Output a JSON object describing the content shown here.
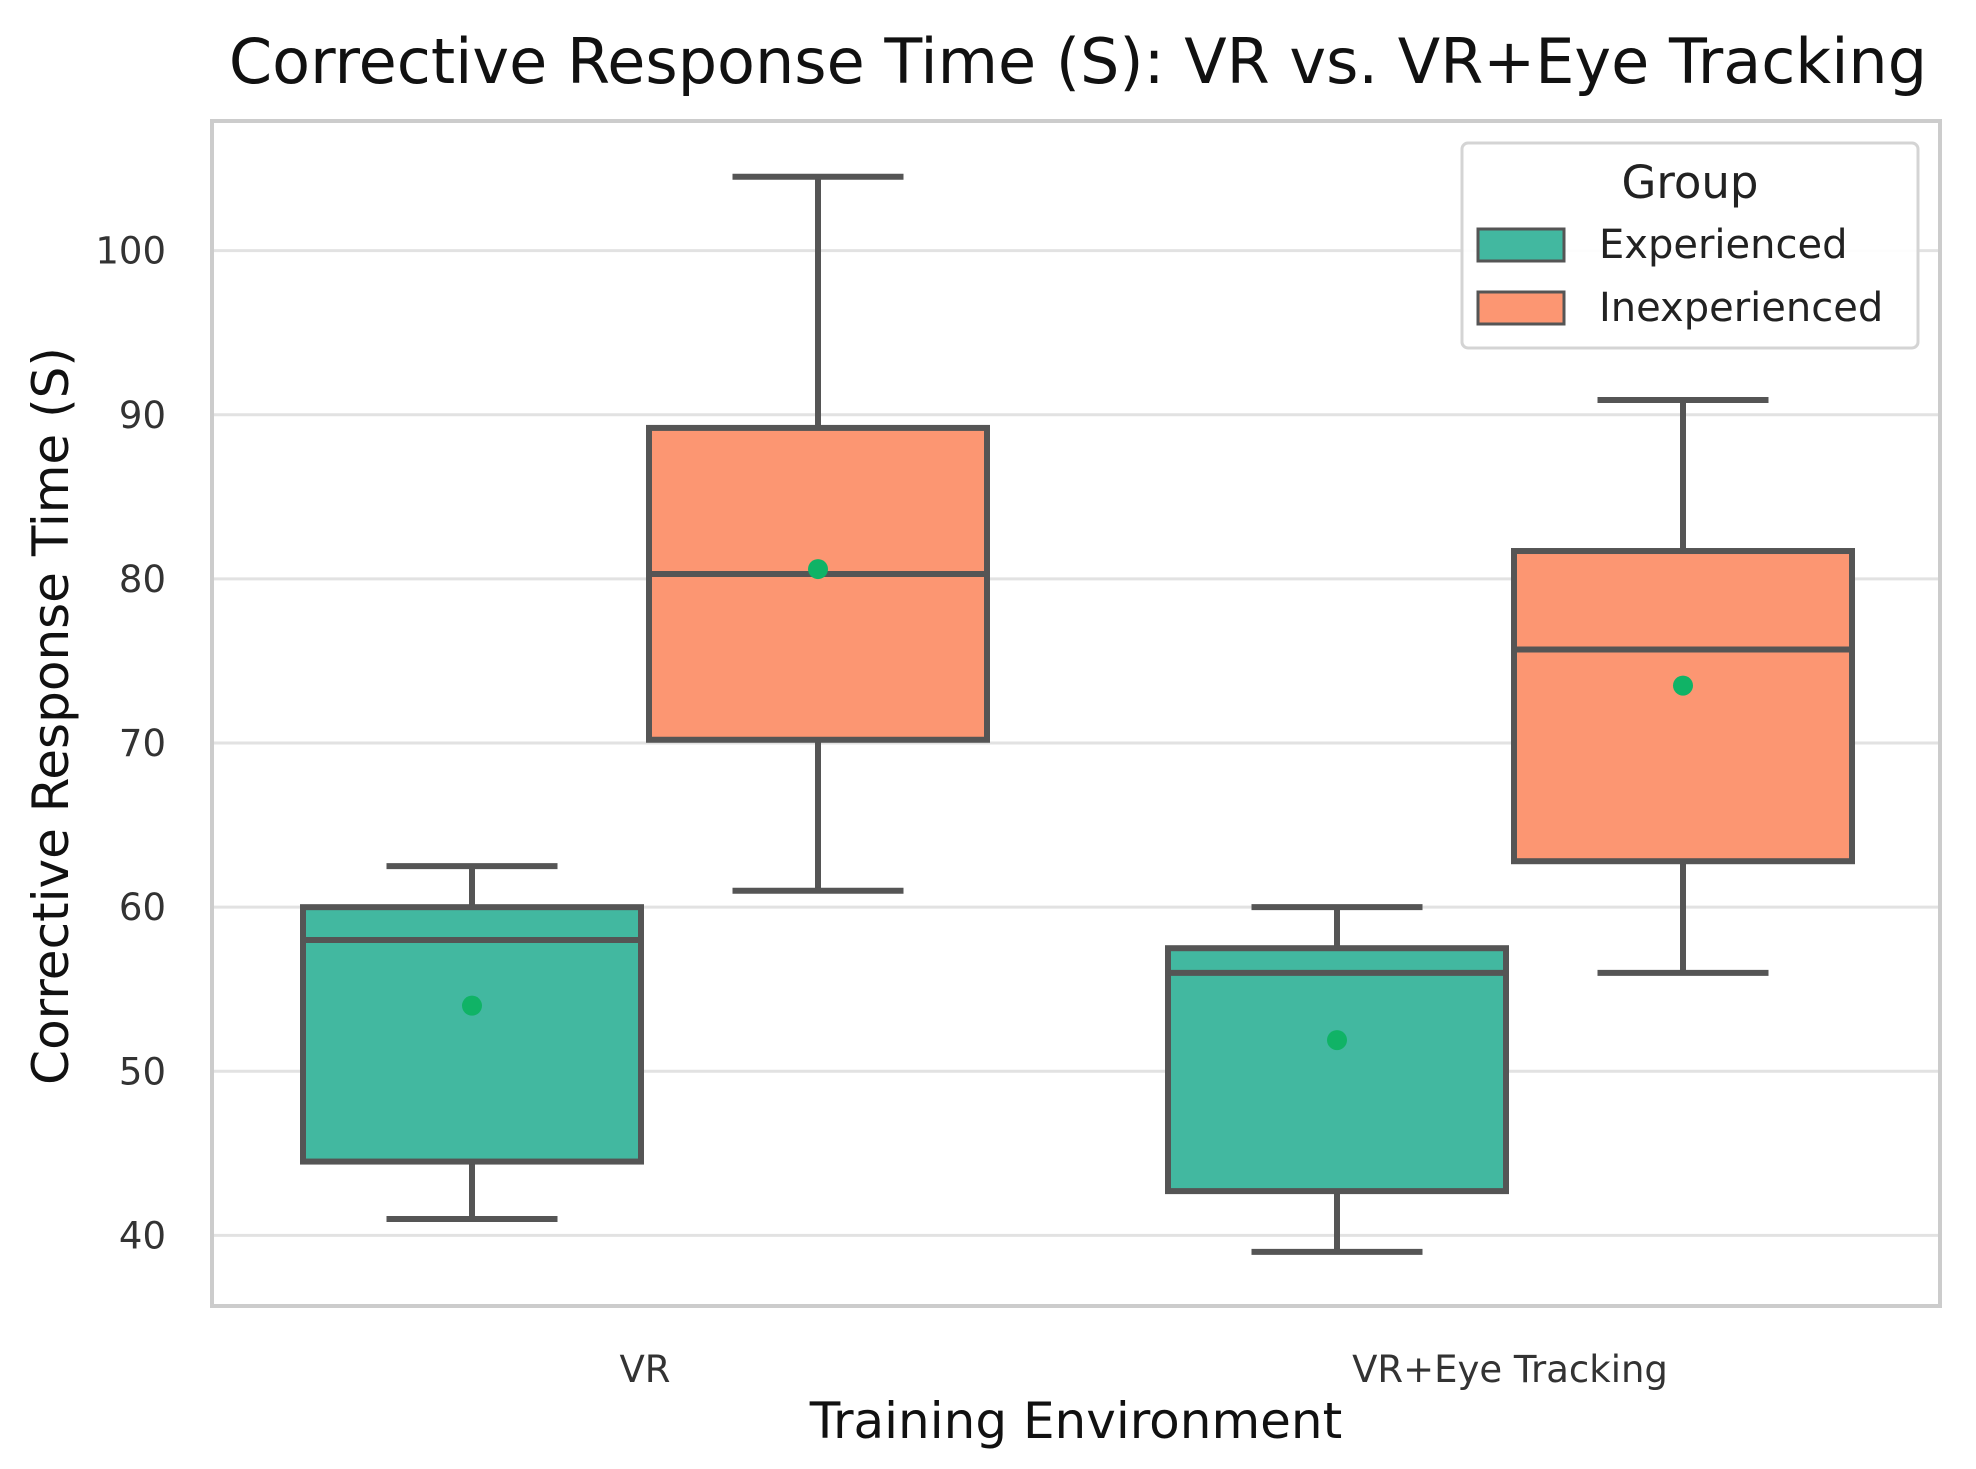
{
  "chart_data": {
    "type": "box",
    "title": "Corrective Response Time (S): VR vs. VR+Eye Tracking",
    "xlabel": "Training Environment",
    "ylabel": "Corrective Response Time (S)",
    "ylim": [
      35.7,
      107.9
    ],
    "yticks": [
      40,
      50,
      60,
      70,
      80,
      90,
      100
    ],
    "grid": true,
    "categories": [
      "VR",
      "VR+Eye Tracking"
    ],
    "legend": {
      "title": "Group",
      "position": "top-right",
      "entries": [
        "Experienced",
        "Inexperienced"
      ]
    },
    "colors": {
      "Experienced": "#42b8a0",
      "Inexperienced": "#fc9672",
      "mean_marker": "#10b366",
      "box_edge": "#555555",
      "grid": "#e2e2e2",
      "frame": "#cccccc"
    },
    "series": [
      {
        "name": "Experienced",
        "boxes": [
          {
            "category": "VR",
            "whisker_low": 41,
            "q1": 44.5,
            "median": 58,
            "q3": 60,
            "whisker_high": 62.5,
            "mean": 54
          },
          {
            "category": "VR+Eye Tracking",
            "whisker_low": 39,
            "q1": 42.7,
            "median": 56,
            "q3": 57.5,
            "whisker_high": 60,
            "mean": 51.9
          }
        ]
      },
      {
        "name": "Inexperienced",
        "boxes": [
          {
            "category": "VR",
            "whisker_low": 61,
            "q1": 70.2,
            "median": 80.3,
            "q3": 89.2,
            "whisker_high": 104.5,
            "mean": 80.6
          },
          {
            "category": "VR+Eye Tracking",
            "whisker_low": 56,
            "q1": 62.8,
            "median": 75.7,
            "q3": 81.7,
            "whisker_high": 90.9,
            "mean": 73.5
          }
        ]
      }
    ]
  }
}
